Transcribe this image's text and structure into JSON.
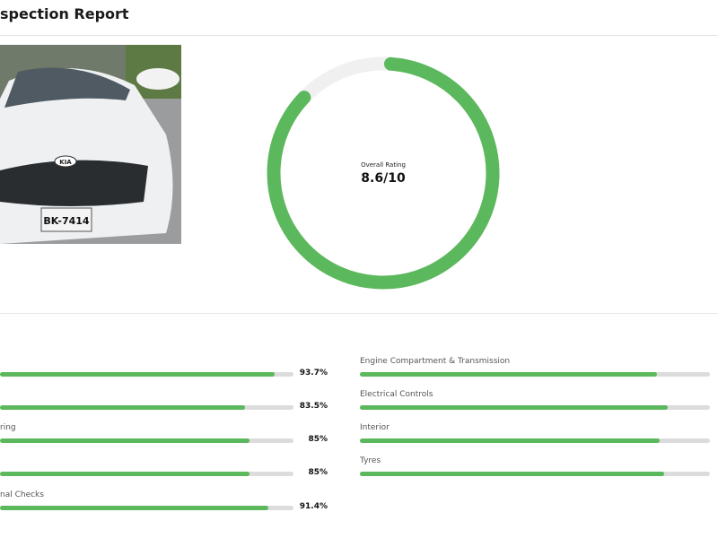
{
  "header": {
    "title": "spection Report"
  },
  "photo": {
    "plate": "BK-7414",
    "brand": "KIA"
  },
  "overall": {
    "label": "Overall Rating",
    "value": "8.6/10",
    "fraction": 0.86,
    "color": "#5cb85c"
  },
  "left_categories": [
    {
      "label": "",
      "value": "93.7%",
      "fraction": 0.937
    },
    {
      "label": "",
      "value": "83.5%",
      "fraction": 0.835
    },
    {
      "label": "ring",
      "value": "85%",
      "fraction": 0.85
    },
    {
      "label": "",
      "value": "85%",
      "fraction": 0.85
    },
    {
      "label": "nal Checks",
      "value": "91.4%",
      "fraction": 0.914
    }
  ],
  "right_categories": [
    {
      "label": "Engine Compartment & Transmission",
      "fraction": 0.849
    },
    {
      "label": "Electrical Controls",
      "fraction": 0.879
    },
    {
      "label": "Interior",
      "fraction": 0.856
    },
    {
      "label": "Tyres",
      "fraction": 0.869
    }
  ]
}
